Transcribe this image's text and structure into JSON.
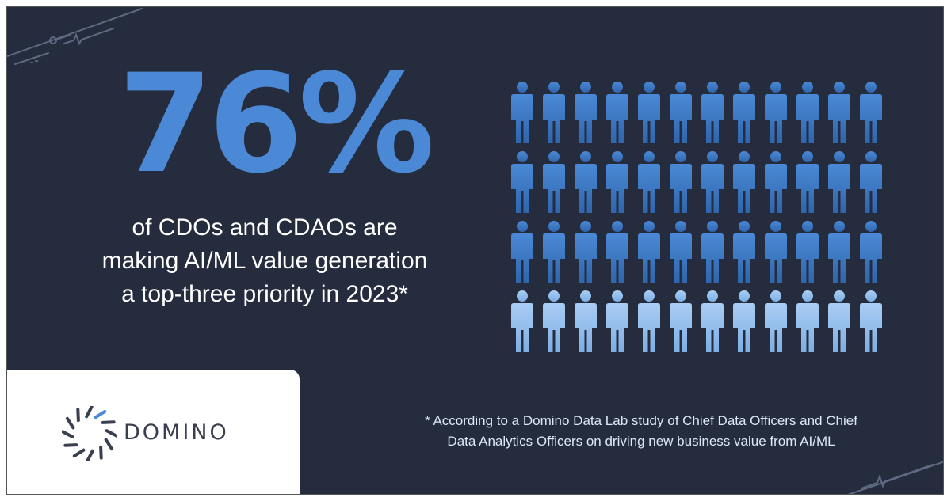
{
  "headline": {
    "value": "76%"
  },
  "subtext": {
    "lines": [
      "of CDOs and CDAOs are",
      "making AI/ML value generation",
      "a top-three priority in 2023*"
    ]
  },
  "pictogram": {
    "rows": 4,
    "columns": 12,
    "filled_rows": 3,
    "colors": {
      "filled": "#4b89d6",
      "filled_dark": "#2f66ad",
      "empty": "#a9cdf4",
      "empty_dark": "#7eaee4"
    }
  },
  "logo": {
    "text": "DOMINO",
    "accent": "#4b89d6",
    "mark_color": "#3a3f4f"
  },
  "footnote": {
    "lines": [
      "* According to a Domino Data Lab study of Chief Data Officers and Chief",
      "Data Analytics Officers on driving new business value from AI/ML"
    ]
  },
  "colors": {
    "background": "#252c3d",
    "headline": "#4b89d6",
    "text": "#ffffff"
  }
}
